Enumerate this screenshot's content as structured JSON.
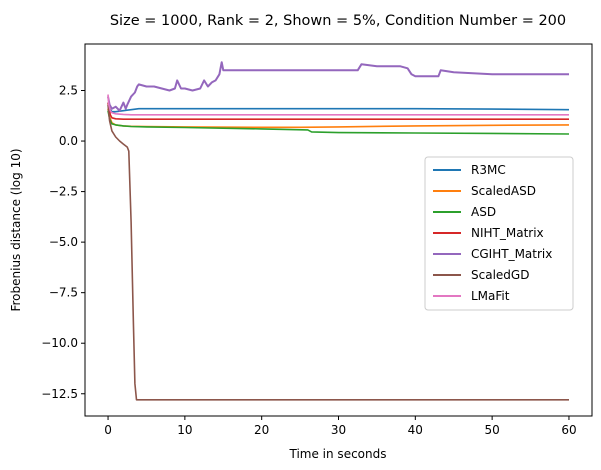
{
  "chart_data": {
    "type": "line",
    "title": "Size = 1000, Rank = 2, Shown = 5%, Condition Number = 200",
    "xlabel": "Time in seconds",
    "ylabel": "Frobenius distance (log 10)",
    "xlim": [
      -3,
      63
    ],
    "ylim": [
      -13.6,
      4.8
    ],
    "xticks": [
      0,
      10,
      20,
      30,
      40,
      50,
      60
    ],
    "xtick_labels": [
      "0",
      "10",
      "20",
      "30",
      "40",
      "50",
      "60"
    ],
    "yticks": [
      2.5,
      0.0,
      -2.5,
      -5.0,
      -7.5,
      -10.0,
      -12.5
    ],
    "ytick_labels": [
      "2.5",
      "0.0",
      "−2.5",
      "−5.0",
      "−7.5",
      "−10.0",
      "−12.5"
    ],
    "grid": false,
    "legend_position": "center-right",
    "series": [
      {
        "name": "R3MC",
        "color": "#1f77b4",
        "x": [
          0,
          0.2,
          0.5,
          1,
          2,
          3,
          4,
          5,
          10,
          20,
          30,
          40,
          50,
          60
        ],
        "y": [
          1.9,
          1.6,
          1.45,
          1.45,
          1.5,
          1.55,
          1.6,
          1.6,
          1.6,
          1.6,
          1.6,
          1.6,
          1.58,
          1.55
        ]
      },
      {
        "name": "ScaledASD",
        "color": "#ff7f0e",
        "x": [
          0,
          0.2,
          0.5,
          1,
          2,
          3,
          5,
          10,
          20,
          25,
          30,
          40,
          50,
          60
        ],
        "y": [
          1.6,
          1.2,
          0.9,
          0.8,
          0.75,
          0.73,
          0.72,
          0.7,
          0.68,
          0.68,
          0.7,
          0.75,
          0.78,
          0.8
        ]
      },
      {
        "name": "ASD",
        "color": "#2ca02c",
        "x": [
          0,
          0.2,
          0.5,
          1,
          2,
          3,
          5,
          10,
          20,
          26,
          26.5,
          30,
          40,
          50,
          60
        ],
        "y": [
          1.5,
          1.1,
          0.85,
          0.8,
          0.75,
          0.72,
          0.7,
          0.67,
          0.6,
          0.55,
          0.45,
          0.42,
          0.4,
          0.38,
          0.35
        ]
      },
      {
        "name": "NIHT_Matrix",
        "color": "#d62728",
        "x": [
          0,
          0.1,
          0.3,
          0.5,
          1,
          2,
          3,
          5,
          10,
          20,
          30,
          40,
          50,
          60
        ],
        "y": [
          1.9,
          1.7,
          1.3,
          1.15,
          1.1,
          1.08,
          1.08,
          1.08,
          1.08,
          1.08,
          1.08,
          1.08,
          1.08,
          1.08
        ]
      },
      {
        "name": "CGIHT_Matrix",
        "color": "#9467bd",
        "x": [
          0,
          0.2,
          0.5,
          1,
          1.5,
          2,
          2.3,
          2.5,
          3,
          3.5,
          3.8,
          4,
          5,
          6,
          7,
          8,
          8.7,
          9,
          9.5,
          10,
          11,
          12,
          12.5,
          13,
          13.5,
          14,
          14.5,
          14.8,
          15,
          15.5,
          20,
          25,
          30,
          32.5,
          33,
          35,
          38,
          39,
          39.5,
          40,
          43,
          43.3,
          45,
          50,
          55,
          60
        ],
        "y": [
          2.2,
          1.8,
          1.6,
          1.7,
          1.5,
          1.9,
          1.6,
          1.8,
          2.2,
          2.4,
          2.7,
          2.8,
          2.7,
          2.7,
          2.6,
          2.5,
          2.6,
          3.0,
          2.6,
          2.6,
          2.5,
          2.6,
          3.0,
          2.7,
          2.9,
          3.0,
          3.3,
          3.9,
          3.5,
          3.5,
          3.5,
          3.5,
          3.5,
          3.5,
          3.8,
          3.7,
          3.7,
          3.6,
          3.3,
          3.2,
          3.2,
          3.5,
          3.4,
          3.3,
          3.3,
          3.3
        ]
      },
      {
        "name": "ScaledGD",
        "color": "#8c564b",
        "x": [
          0,
          0.2,
          0.5,
          1,
          1.5,
          2,
          2.5,
          2.7,
          3,
          3.3,
          3.5,
          3.7,
          4,
          5,
          10,
          20,
          30,
          40,
          50,
          60
        ],
        "y": [
          1.8,
          1.0,
          0.5,
          0.2,
          0.0,
          -0.15,
          -0.3,
          -0.5,
          -4.0,
          -9.0,
          -12.0,
          -12.8,
          -12.8,
          -12.8,
          -12.8,
          -12.8,
          -12.8,
          -12.8,
          -12.8,
          -12.8
        ]
      },
      {
        "name": "LMaFit",
        "color": "#e377c2",
        "x": [
          0,
          0.1,
          0.3,
          0.5,
          1,
          2,
          3,
          5,
          10,
          20,
          30,
          40,
          50,
          60
        ],
        "y": [
          2.3,
          1.8,
          1.5,
          1.4,
          1.35,
          1.32,
          1.3,
          1.3,
          1.3,
          1.3,
          1.3,
          1.3,
          1.3,
          1.3
        ]
      }
    ]
  }
}
